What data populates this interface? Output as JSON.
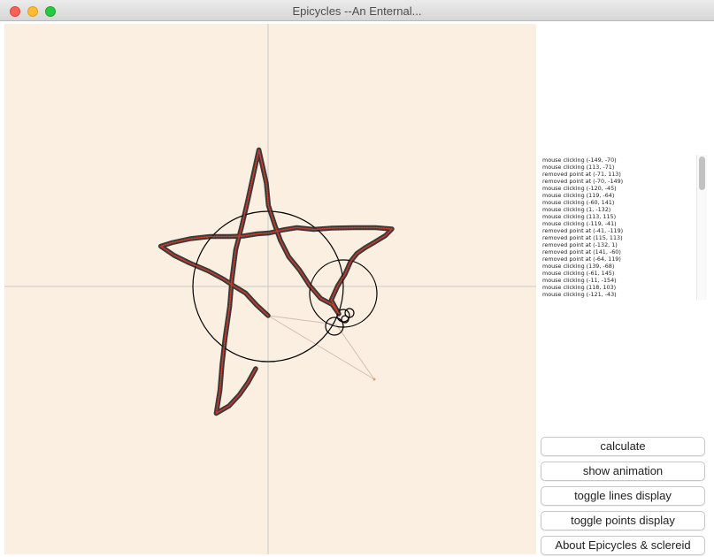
{
  "window": {
    "title": "Epicycles --An Enternal...",
    "controls": [
      "close",
      "minimize",
      "zoom"
    ]
  },
  "canvas": {
    "background": "#faefe0",
    "axis_color": "#c8c8c8",
    "trace_color": "#1a1a1a",
    "point_color": "#d33a2c",
    "circle_color": "#000000",
    "arm_color": "#d6bfae"
  },
  "log": {
    "lines": [
      "mouse clicking (-149, -70)",
      "mouse clicking (113, -71)",
      "removed point at (-71, 113)",
      "removed point at (-70, -149)",
      "mouse clicking (-120, -45)",
      "mouse clicking (119, -64)",
      "mouse clicking (-60, 141)",
      "mouse clicking (1, -132)",
      "mouse clicking (113, 115)",
      "mouse clicking (-119, -41)",
      "removed point at (-41, -119)",
      "removed point at (115, 113)",
      "removed point at (-132, 1)",
      "removed point at (141, -60)",
      "removed point at (-64, 119)",
      "mouse clicking (139, -68)",
      "mouse clicking (-61, 145)",
      "mouse clicking (-11, -154)",
      "mouse clicking (118, 103)",
      "mouse clicking (-121, -43)"
    ]
  },
  "buttons": {
    "calculate": "calculate",
    "show_animation": "show animation",
    "toggle_lines": "toggle lines display",
    "toggle_points": "toggle points display",
    "about": "About Epicycles & sclereid"
  }
}
